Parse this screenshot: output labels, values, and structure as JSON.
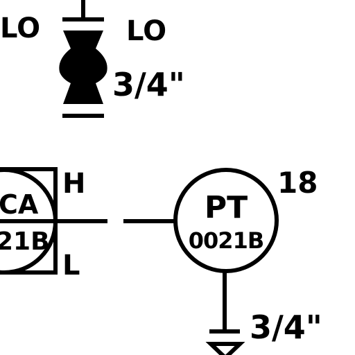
{
  "colors": {
    "background": "#ffffff",
    "ink": "#000000"
  },
  "valve": {
    "left_label": "LO",
    "right_label": "LO",
    "size_label": "3/4\""
  },
  "controller": {
    "tag_top": "CA",
    "tag_bottom": "21B",
    "high_label": "H",
    "low_label": "L"
  },
  "transmitter": {
    "tag_top": "PT",
    "tag_bottom": "0021B",
    "number_label": "18",
    "size_label": "3/4\""
  }
}
